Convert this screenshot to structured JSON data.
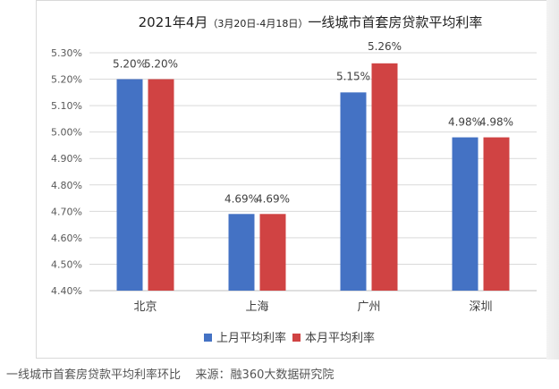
{
  "chart_data": {
    "type": "bar",
    "title_main": "2021年4月",
    "title_period": "（3月20日-4月18日）",
    "title_rest": "一线城市首套房贷款平均利率",
    "categories": [
      "北京",
      "上海",
      "广州",
      "深圳"
    ],
    "series": [
      {
        "name": "上月平均利率",
        "color": "#4472C4",
        "values": [
          5.2,
          4.69,
          5.15,
          4.98
        ],
        "labels": [
          "5.20%",
          "4.69%",
          "5.15%",
          "4.98%"
        ]
      },
      {
        "name": "本月平均利率",
        "color": "#D04343",
        "values": [
          5.2,
          4.69,
          5.26,
          4.98
        ],
        "labels": [
          "5.20%",
          "4.69%",
          "5.26%",
          "4.98%"
        ]
      }
    ],
    "ylim": [
      4.4,
      5.3
    ],
    "yticks": [
      "4.40%",
      "4.50%",
      "4.60%",
      "4.70%",
      "4.80%",
      "4.90%",
      "5.00%",
      "5.10%",
      "5.20%",
      "5.30%"
    ],
    "grid": true,
    "legend_position": "bottom"
  },
  "caption": {
    "text": "一线城市首套房贷款平均利率环比",
    "source": "来源：融360大数据研究院"
  }
}
